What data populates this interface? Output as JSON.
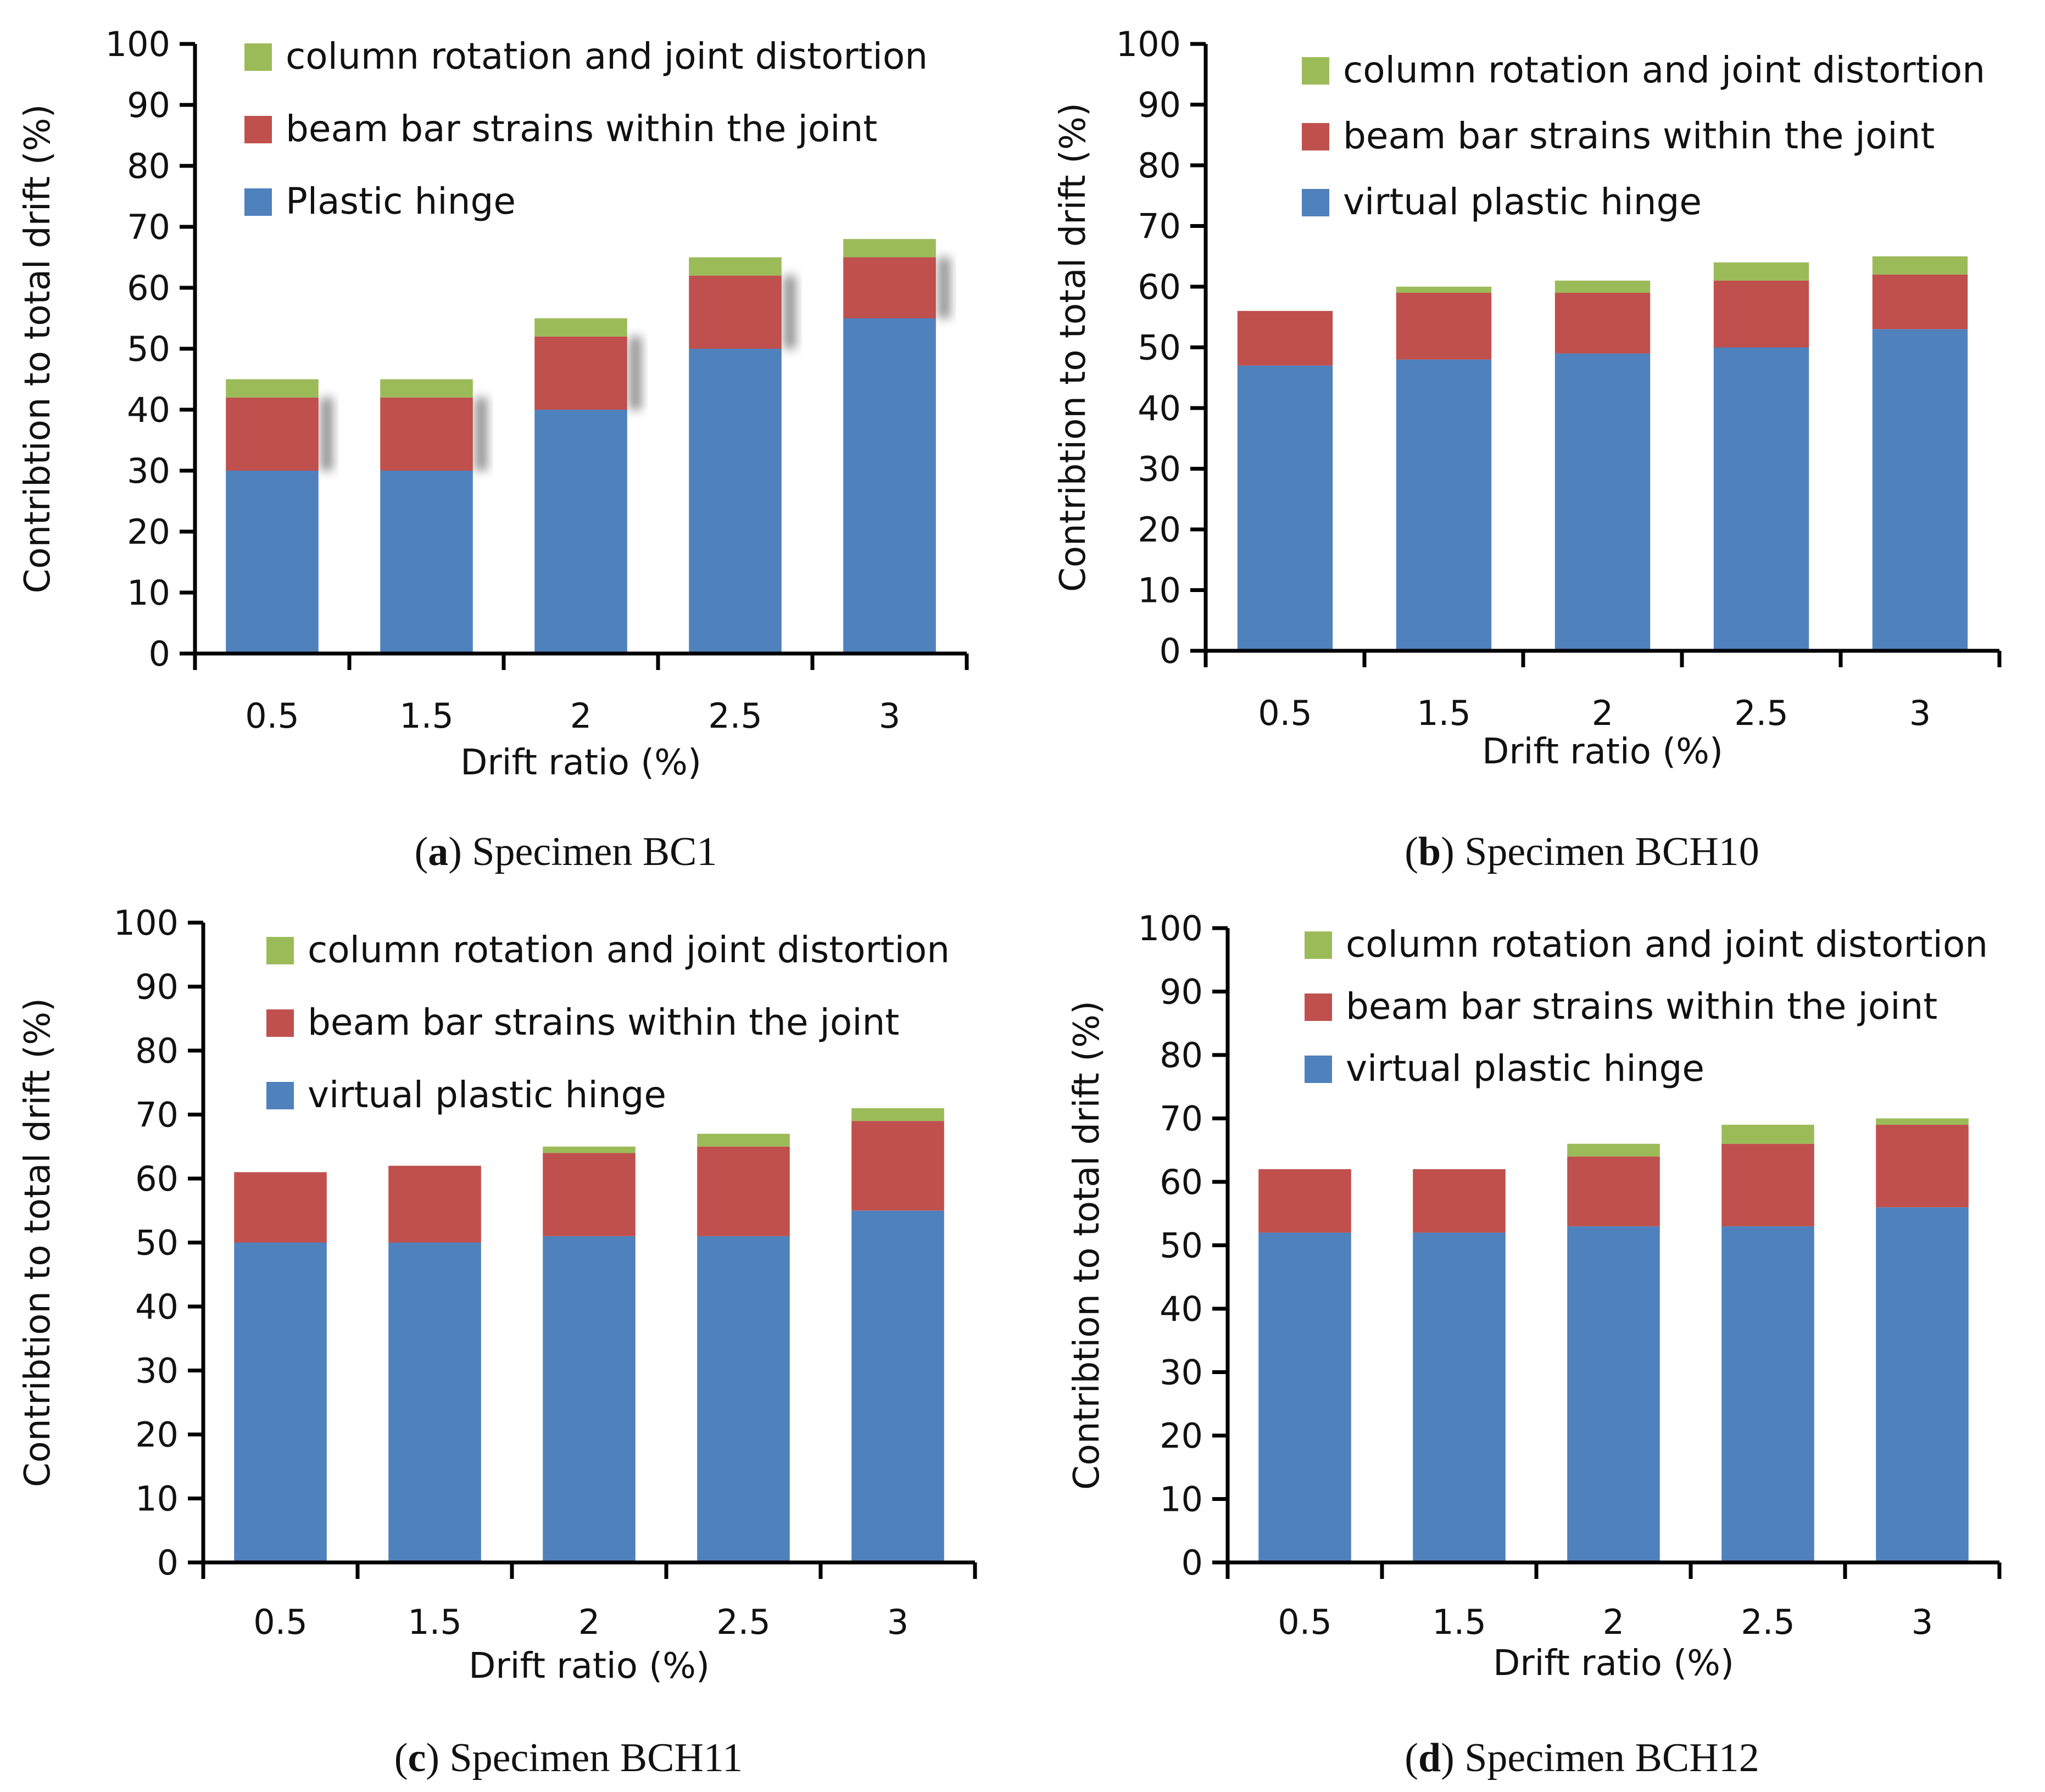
{
  "chart_data": [
    {
      "type": "bar",
      "stacked": true,
      "title": "Specimen BC1",
      "caption_letter": "a",
      "xlabel": "Drift ratio (%)",
      "ylabel": "Contribtion to total drift (%)",
      "ylim": [
        0,
        100
      ],
      "yticks": [
        0,
        10,
        20,
        30,
        40,
        50,
        60,
        70,
        80,
        90,
        100
      ],
      "categories": [
        "0.5",
        "1.5",
        "2",
        "2.5",
        "3"
      ],
      "legend_position": "top-left",
      "series": [
        {
          "name": "Plastic hinge",
          "color": "#4f81bd",
          "values": [
            30,
            30,
            40,
            50,
            55
          ]
        },
        {
          "name": "beam bar strains within the joint",
          "color": "#c0504d",
          "values": [
            12,
            12,
            12,
            12,
            10
          ]
        },
        {
          "name": "column rotation and joint distortion",
          "color": "#9bbb59",
          "values": [
            3,
            3,
            3,
            3,
            3
          ]
        }
      ]
    },
    {
      "type": "bar",
      "stacked": true,
      "title": "Specimen BCH10",
      "caption_letter": "b",
      "xlabel": "Drift ratio (%)",
      "ylabel": "Contribtion to total drift (%)",
      "ylim": [
        0,
        100
      ],
      "yticks": [
        0,
        10,
        20,
        30,
        40,
        50,
        60,
        70,
        80,
        90,
        100
      ],
      "categories": [
        "0.5",
        "1.5",
        "2",
        "2.5",
        "3"
      ],
      "legend_position": "top-right",
      "series": [
        {
          "name": "virtual plastic hinge",
          "color": "#4f81bd",
          "values": [
            47,
            48,
            49,
            50,
            53
          ]
        },
        {
          "name": "beam bar strains within the joint",
          "color": "#c0504d",
          "values": [
            9,
            11,
            10,
            11,
            9
          ]
        },
        {
          "name": "column rotation and joint distortion",
          "color": "#9bbb59",
          "values": [
            0,
            1,
            2,
            3,
            3
          ]
        }
      ]
    },
    {
      "type": "bar",
      "stacked": true,
      "title": "Specimen BCH11",
      "caption_letter": "c",
      "xlabel": "Drift ratio (%)",
      "ylabel": "Contribtion to total drift (%)",
      "ylim": [
        0,
        100
      ],
      "yticks": [
        0,
        10,
        20,
        30,
        40,
        50,
        60,
        70,
        80,
        90,
        100
      ],
      "categories": [
        "0.5",
        "1.5",
        "2",
        "2.5",
        "3"
      ],
      "legend_position": "top",
      "series": [
        {
          "name": "virtual plastic hinge",
          "color": "#4f81bd",
          "values": [
            50,
            50,
            51,
            51,
            55
          ]
        },
        {
          "name": "beam bar strains within the joint",
          "color": "#c0504d",
          "values": [
            11,
            12,
            13,
            14,
            14
          ]
        },
        {
          "name": "column rotation and joint distortion",
          "color": "#9bbb59",
          "values": [
            0,
            0,
            1,
            2,
            2
          ]
        }
      ]
    },
    {
      "type": "bar",
      "stacked": true,
      "title": "Specimen BCH12",
      "caption_letter": "d",
      "xlabel": "Drift ratio (%)",
      "ylabel": "Contribtion to total drift (%)",
      "ylim": [
        0,
        100
      ],
      "yticks": [
        0,
        10,
        20,
        30,
        40,
        50,
        60,
        70,
        80,
        90,
        100
      ],
      "categories": [
        "0.5",
        "1.5",
        "2",
        "2.5",
        "3"
      ],
      "legend_position": "top-right",
      "series": [
        {
          "name": "virtual plastic hinge",
          "color": "#4f81bd",
          "values": [
            52,
            52,
            53,
            53,
            56
          ]
        },
        {
          "name": "beam bar strains within the joint",
          "color": "#c0504d",
          "values": [
            10,
            10,
            11,
            13,
            13
          ]
        },
        {
          "name": "column rotation and joint distortion",
          "color": "#9bbb59",
          "values": [
            0,
            0,
            2,
            3,
            1
          ]
        }
      ]
    }
  ]
}
